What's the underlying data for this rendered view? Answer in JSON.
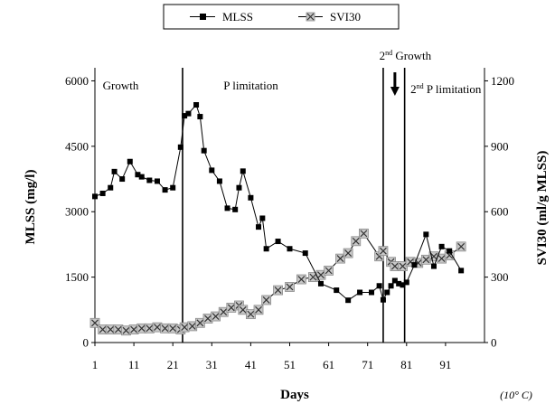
{
  "chart_data": {
    "type": "line",
    "xlabel": "Days",
    "ylabel_left": "MLSS (mg/l)",
    "ylabel_right": "SVI30 (ml/g MLSS)",
    "note": "(10° C)",
    "x_ticks": [
      1,
      11,
      21,
      31,
      41,
      51,
      61,
      71,
      81,
      91
    ],
    "y_left_ticks": [
      0,
      1500,
      3000,
      4500,
      6000
    ],
    "y_right_ticks": [
      0,
      300,
      600,
      900,
      1200
    ],
    "xlim": [
      1,
      101
    ],
    "ylim_left": [
      0,
      6300
    ],
    "ylim_right": [
      0,
      1260
    ],
    "grid": false,
    "legend_position": "top-center",
    "phases": [
      {
        "label": "Growth",
        "x": 3
      },
      {
        "label": "P limitation",
        "x": 34
      },
      {
        "label": "2",
        "sup": "nd",
        "rest": " Growth",
        "x": 74
      },
      {
        "label": "2",
        "sup": "nd",
        "rest": " P limitation",
        "x": 82
      }
    ],
    "phase_boundaries": [
      23.5,
      75,
      80.5
    ],
    "arrow_x": 78,
    "series": [
      {
        "name": "MLSS",
        "axis": "left",
        "marker": "square",
        "x": [
          1,
          3,
          5,
          6,
          8,
          10,
          12,
          13,
          15,
          17,
          19,
          21,
          23,
          24,
          25,
          27,
          28,
          29,
          31,
          33,
          35,
          37,
          38,
          39,
          41,
          43,
          44,
          45,
          48,
          51,
          55,
          59,
          63,
          66,
          69,
          72,
          74,
          75,
          76,
          77,
          78,
          79,
          80,
          81,
          83,
          86,
          88,
          90,
          92,
          95
        ],
        "y": [
          3350,
          3420,
          3550,
          3920,
          3750,
          4150,
          3850,
          3800,
          3720,
          3700,
          3500,
          3550,
          4480,
          5200,
          5250,
          5450,
          5180,
          4400,
          3950,
          3700,
          3080,
          3050,
          3550,
          3930,
          3320,
          2650,
          2850,
          2150,
          2320,
          2150,
          2050,
          1350,
          1200,
          970,
          1150,
          1150,
          1300,
          980,
          1150,
          1300,
          1420,
          1350,
          1320,
          1380,
          1780,
          2480,
          1750,
          2200,
          2100,
          1650
        ]
      },
      {
        "name": "SVI30",
        "axis": "right",
        "marker": "x-box",
        "x": [
          1,
          3,
          5,
          7,
          9,
          11,
          13,
          15,
          17,
          19,
          21,
          23,
          24,
          26,
          28,
          30,
          32,
          34,
          36,
          38,
          39,
          41,
          43,
          45,
          48,
          51,
          54,
          57,
          59,
          61,
          64,
          66,
          68,
          70,
          74,
          75,
          77,
          78,
          80,
          82,
          84,
          86,
          88,
          90,
          92,
          95
        ],
        "y": [
          90,
          60,
          60,
          60,
          55,
          60,
          65,
          65,
          70,
          65,
          65,
          60,
          70,
          75,
          90,
          110,
          120,
          140,
          160,
          170,
          150,
          130,
          150,
          195,
          240,
          255,
          290,
          300,
          310,
          330,
          385,
          410,
          465,
          500,
          395,
          420,
          370,
          350,
          350,
          370,
          365,
          380,
          395,
          385,
          400,
          440
        ]
      }
    ]
  }
}
